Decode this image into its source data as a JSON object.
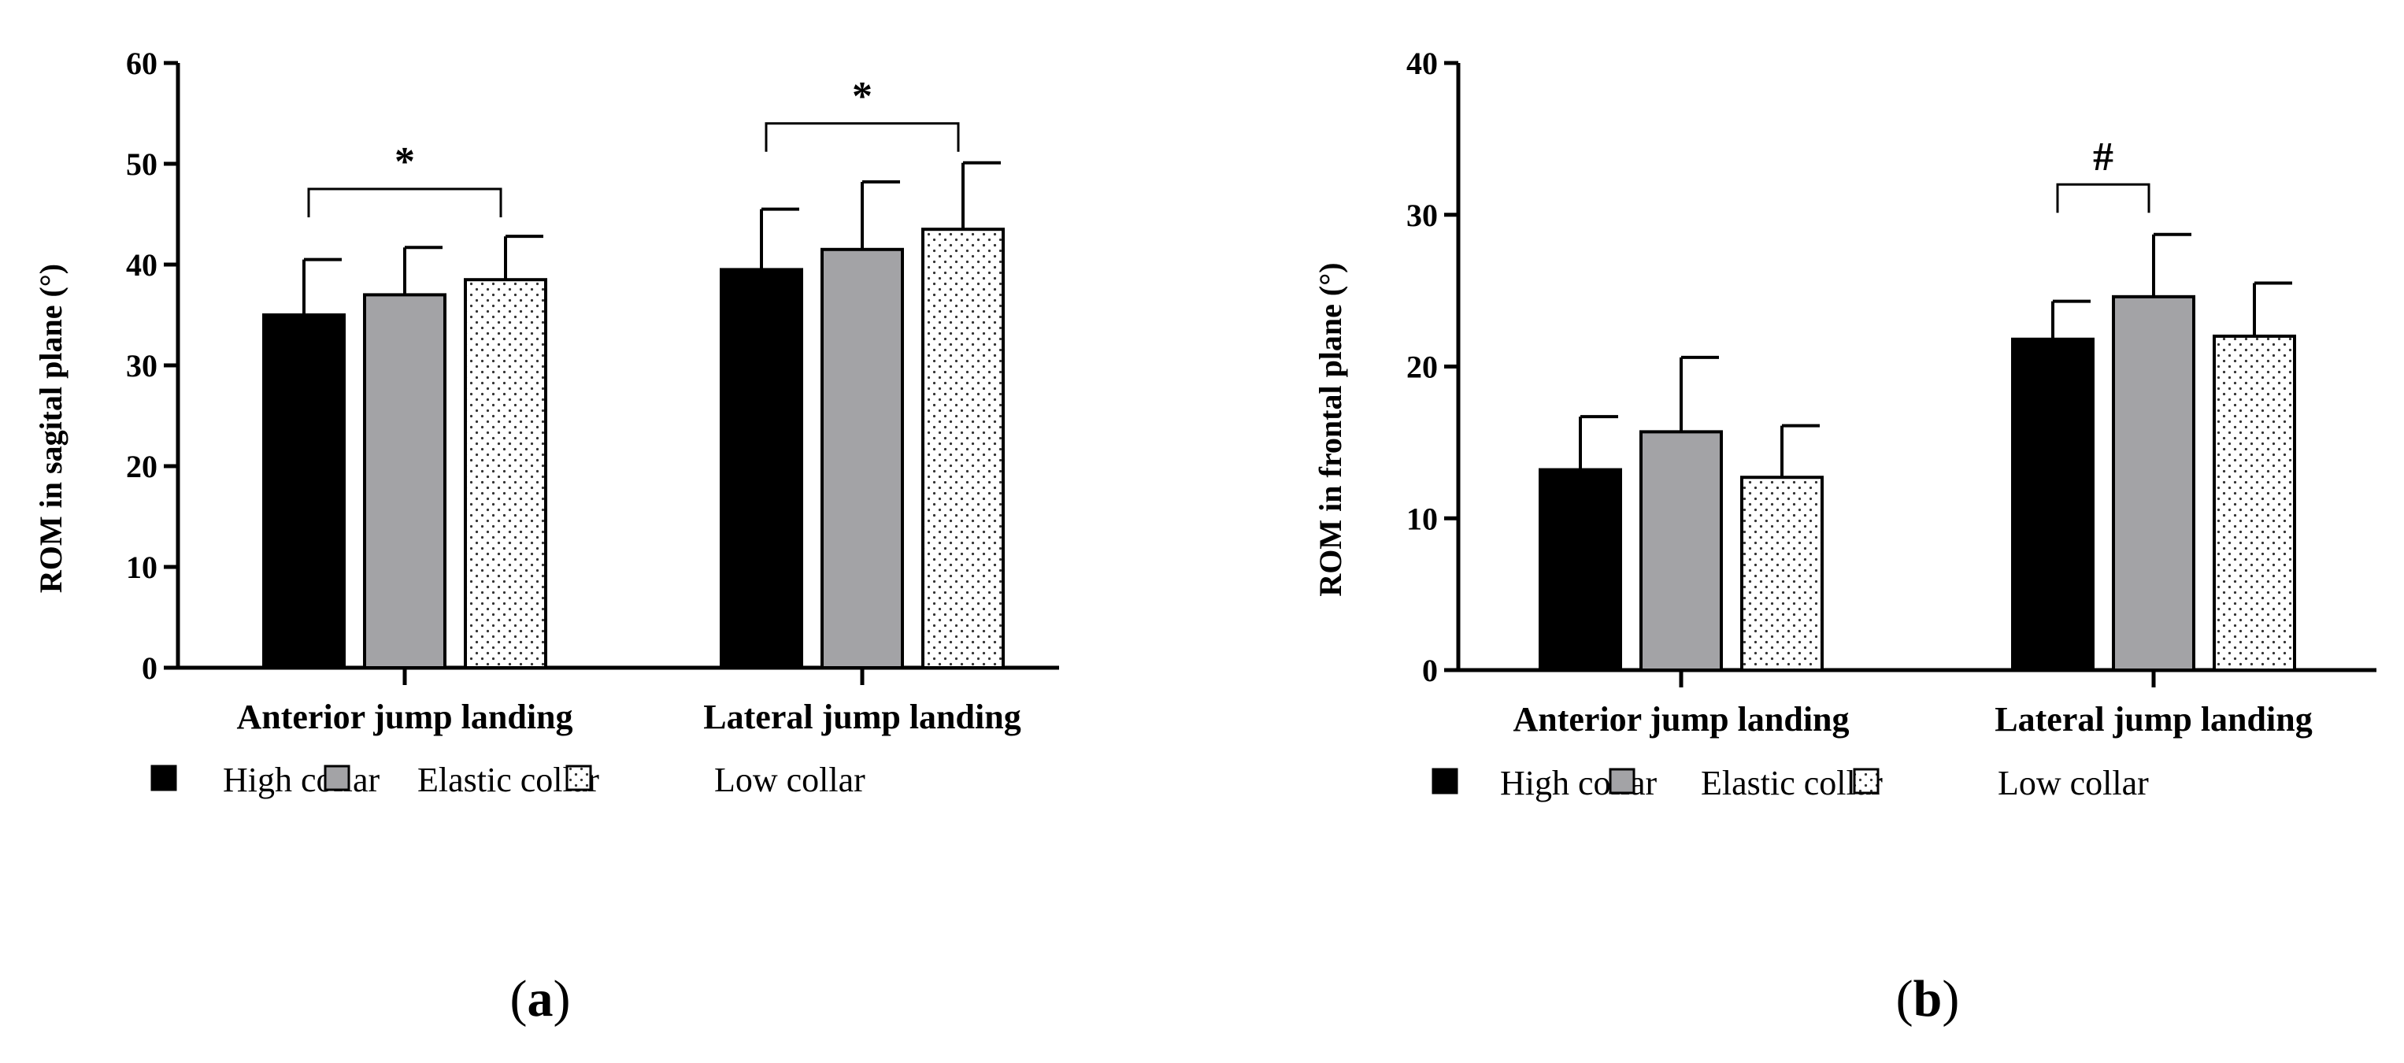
{
  "colors": {
    "high": "#000000",
    "elastic": "#a3a3a6",
    "low": "#ffffff",
    "axis": "#000000"
  },
  "chart_data": [
    {
      "type": "bar",
      "panel_label": "(a)",
      "panel_letter": "a",
      "ylabel": "ROM in sagital plane (°)",
      "ylim": [
        0,
        60
      ],
      "yticks": [
        0,
        10,
        20,
        30,
        40,
        50,
        60
      ],
      "ytick_labels": [
        "0",
        "10",
        "20",
        "30",
        "40",
        "50",
        "60"
      ],
      "categories": [
        "Anterior jump landing",
        "Lateral jump landing"
      ],
      "series": [
        {
          "name": "High collar",
          "key": "high",
          "values": [
            35.0,
            39.5
          ],
          "errors": [
            5.5,
            6.0
          ]
        },
        {
          "name": "Elastic collar",
          "key": "elastic",
          "values": [
            37.0,
            41.5
          ],
          "errors": [
            4.7,
            6.7
          ]
        },
        {
          "name": "Low collar",
          "key": "low",
          "values": [
            38.5,
            43.5
          ],
          "errors": [
            4.3,
            6.6
          ]
        }
      ],
      "annotations": [
        {
          "label": "*",
          "category": 0,
          "from_series": 0,
          "to_series": 2,
          "level": 47.5
        },
        {
          "label": "*",
          "category": 1,
          "from_series": 0,
          "to_series": 2,
          "level": 54.0
        }
      ],
      "legend": [
        "High collar",
        "Elastic collar",
        "Low collar"
      ]
    },
    {
      "type": "bar",
      "panel_label": "(b)",
      "panel_letter": "b",
      "ylabel": "ROM in frontal plane (°)",
      "ylim": [
        0,
        40
      ],
      "yticks": [
        0,
        10,
        20,
        30,
        40
      ],
      "ytick_labels": [
        "0",
        "10",
        "20",
        "30",
        "40"
      ],
      "categories": [
        "Anterior jump landing",
        "Lateral jump landing"
      ],
      "series": [
        {
          "name": "High collar",
          "key": "high",
          "values": [
            13.2,
            21.8
          ],
          "errors": [
            3.5,
            2.5
          ]
        },
        {
          "name": "Elastic collar",
          "key": "elastic",
          "values": [
            15.7,
            24.6
          ],
          "errors": [
            4.9,
            4.1
          ]
        },
        {
          "name": "Low collar",
          "key": "low",
          "values": [
            12.7,
            22.0
          ],
          "errors": [
            3.4,
            3.5
          ]
        }
      ],
      "annotations": [
        {
          "label": "#",
          "category": 1,
          "from_series": 0,
          "to_series": 1,
          "level": 32.0
        }
      ],
      "legend": [
        "High collar",
        "Elastic collar",
        "Low collar"
      ]
    }
  ]
}
